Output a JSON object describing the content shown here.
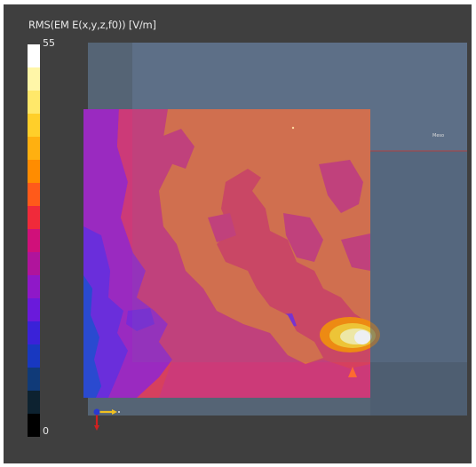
{
  "legend": {
    "title": "RMS(EM E(x,y,z,f0)) [V/m]",
    "max_label": "55",
    "min_label": "0",
    "colors": [
      "#ffffff",
      "#fff6a8",
      "#ffe86a",
      "#ffcf2a",
      "#ffb010",
      "#ff8c00",
      "#ff5a1a",
      "#f02a3a",
      "#d0107a",
      "#b0149c",
      "#8f18c8",
      "#6a1adb",
      "#3a22d8",
      "#1838c0",
      "#103a78",
      "#0d2230",
      "#000000"
    ]
  },
  "scene": {
    "probe_label": "Meso",
    "colors": {
      "background": "#3f3f3f",
      "box_back": "#5b6e84",
      "box_side": "#526579",
      "field_orange": "#de6e45",
      "field_magenta": "#cc3a78",
      "field_purple": "#9a2ac0",
      "field_violet": "#6a2edb",
      "field_blue": "#2a4ad0",
      "hotspot": "#fff6a8",
      "probe_line": "#b04040"
    }
  }
}
